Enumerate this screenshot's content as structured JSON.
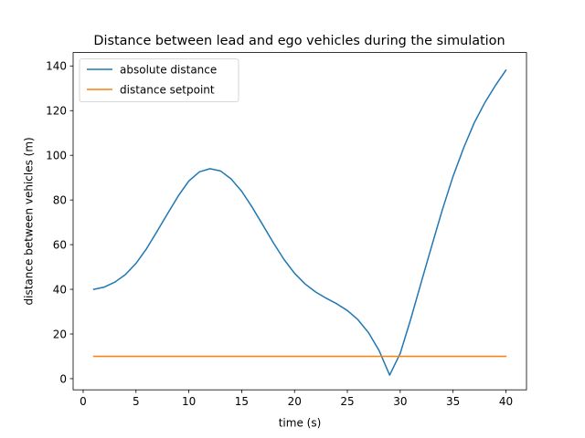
{
  "chart_data": {
    "type": "line",
    "title": "Distance between lead and ego vehicles during the simulation",
    "xlabel": "time (s)",
    "ylabel": "distance between vehicles (m)",
    "xlim": [
      -0.95,
      41.95
    ],
    "ylim": [
      -5,
      146
    ],
    "xticks": [
      0,
      5,
      10,
      15,
      20,
      25,
      30,
      35,
      40
    ],
    "yticks": [
      0,
      20,
      40,
      60,
      80,
      100,
      120,
      140
    ],
    "grid": false,
    "legend_position": "top-left",
    "series": [
      {
        "name": "absolute distance",
        "color": "#1f77b4",
        "x": [
          1,
          2,
          3,
          4,
          5,
          6,
          7,
          8,
          9,
          10,
          11,
          12,
          13,
          14,
          15,
          16,
          17,
          18,
          19,
          20,
          21,
          22,
          23,
          24,
          25,
          26,
          27,
          28,
          29,
          30,
          31,
          32,
          33,
          34,
          35,
          36,
          37,
          38,
          39,
          40
        ],
        "values": [
          40.0,
          41.0,
          43.2,
          46.6,
          51.6,
          58.2,
          66.0,
          74.0,
          81.8,
          88.5,
          92.6,
          94.0,
          93.0,
          89.4,
          83.9,
          76.7,
          68.8,
          60.8,
          53.4,
          47.2,
          42.4,
          38.8,
          36.0,
          33.5,
          30.5,
          26.4,
          20.6,
          12.6,
          1.6,
          11.3,
          26.7,
          43.3,
          59.7,
          75.8,
          90.6,
          103.3,
          114.5,
          123.5,
          131.2,
          138.1
        ]
      },
      {
        "name": "distance setpoint",
        "color": "#ff7f0e",
        "x": [
          1,
          2,
          3,
          4,
          5,
          6,
          7,
          8,
          9,
          10,
          11,
          12,
          13,
          14,
          15,
          16,
          17,
          18,
          19,
          20,
          21,
          22,
          23,
          24,
          25,
          26,
          27,
          28,
          29,
          30,
          31,
          32,
          33,
          34,
          35,
          36,
          37,
          38,
          39,
          40
        ],
        "values": [
          10,
          10,
          10,
          10,
          10,
          10,
          10,
          10,
          10,
          10,
          10,
          10,
          10,
          10,
          10,
          10,
          10,
          10,
          10,
          10,
          10,
          10,
          10,
          10,
          10,
          10,
          10,
          10,
          10,
          10,
          10,
          10,
          10,
          10,
          10,
          10,
          10,
          10,
          10,
          10
        ]
      }
    ]
  }
}
